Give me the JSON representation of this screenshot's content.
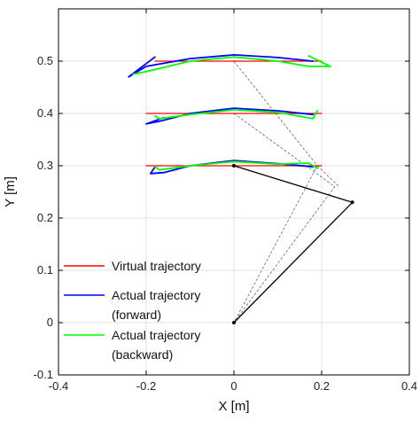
{
  "chart_data": {
    "type": "line",
    "title": "",
    "xlabel": "X [m]",
    "ylabel": "Y [m]",
    "xlim": [
      -0.4,
      0.4
    ],
    "ylim": [
      -0.1,
      0.6
    ],
    "xticks": [
      "-0.4",
      "-0.2",
      "0",
      "0.2",
      "0.4"
    ],
    "yticks": [
      "-0.1",
      "0",
      "0.1",
      "0.2",
      "0.3",
      "0.4",
      "0.5"
    ],
    "grid": true,
    "legend": {
      "placement": "lower-left",
      "entries": [
        {
          "label": "Virtual trajectory",
          "color": "#ff0000"
        },
        {
          "label_lines": [
            "Actual trajectory",
            "(forward)"
          ],
          "color": "#0000ff"
        },
        {
          "label_lines": [
            "Actual trajectory",
            "(backward)"
          ],
          "color": "#00ff00"
        }
      ]
    },
    "series": [
      {
        "name": "Virtual trajectory",
        "color": "#ff0000",
        "segments": [
          [
            [
              -0.2,
              0.3
            ],
            [
              0.2,
              0.3
            ]
          ],
          [
            [
              -0.2,
              0.4
            ],
            [
              0.2,
              0.4
            ]
          ],
          [
            [
              -0.18,
              0.5
            ],
            [
              0.2,
              0.5
            ]
          ]
        ]
      },
      {
        "name": "Actual trajectory (forward)",
        "color": "#0000ff",
        "segments": [
          [
            [
              -0.18,
              0.298
            ],
            [
              -0.19,
              0.285
            ],
            [
              -0.16,
              0.287
            ],
            [
              -0.1,
              0.3
            ],
            [
              0,
              0.31
            ],
            [
              0.1,
              0.304
            ],
            [
              0.18,
              0.298
            ]
          ],
          [
            [
              -0.16,
              0.392
            ],
            [
              -0.2,
              0.38
            ],
            [
              -0.17,
              0.385
            ],
            [
              -0.1,
              0.4
            ],
            [
              0,
              0.41
            ],
            [
              0.1,
              0.405
            ],
            [
              0.18,
              0.398
            ]
          ],
          [
            [
              -0.18,
              0.508
            ],
            [
              -0.24,
              0.47
            ],
            [
              -0.2,
              0.49
            ],
            [
              -0.1,
              0.505
            ],
            [
              0,
              0.512
            ],
            [
              0.1,
              0.507
            ],
            [
              0.18,
              0.5
            ]
          ]
        ]
      },
      {
        "name": "Actual trajectory (backward)",
        "color": "#00ff00",
        "segments": [
          [
            [
              0.19,
              0.295
            ],
            [
              0.17,
              0.305
            ],
            [
              0.1,
              0.303
            ],
            [
              0,
              0.308
            ],
            [
              -0.1,
              0.3
            ],
            [
              -0.17,
              0.292
            ],
            [
              -0.18,
              0.298
            ]
          ],
          [
            [
              0.19,
              0.405
            ],
            [
              0.18,
              0.39
            ],
            [
              0.1,
              0.402
            ],
            [
              0,
              0.407
            ],
            [
              -0.1,
              0.398
            ],
            [
              -0.17,
              0.39
            ],
            [
              -0.18,
              0.395
            ]
          ],
          [
            [
              0.17,
              0.51
            ],
            [
              0.22,
              0.49
            ],
            [
              0.17,
              0.49
            ],
            [
              0.1,
              0.5
            ],
            [
              0,
              0.508
            ],
            [
              -0.1,
              0.5
            ],
            [
              -0.2,
              0.48
            ],
            [
              -0.23,
              0.475
            ]
          ]
        ]
      }
    ],
    "linkage": {
      "solid": {
        "color": "#000000",
        "points": [
          [
            0,
            0.3
          ],
          [
            0.27,
            0.23
          ],
          [
            0,
            0
          ]
        ]
      },
      "dashed": {
        "color": "#666666",
        "segments": [
          [
            [
              0,
              0.5
            ],
            [
              0.19,
              0.3
            ],
            [
              0,
              0
            ]
          ],
          [
            [
              0,
              0.4
            ],
            [
              0.23,
              0.26
            ],
            [
              0,
              0
            ]
          ],
          [
            [
              0.19,
              0.3
            ],
            [
              0.24,
              0.26
            ]
          ]
        ]
      }
    }
  }
}
